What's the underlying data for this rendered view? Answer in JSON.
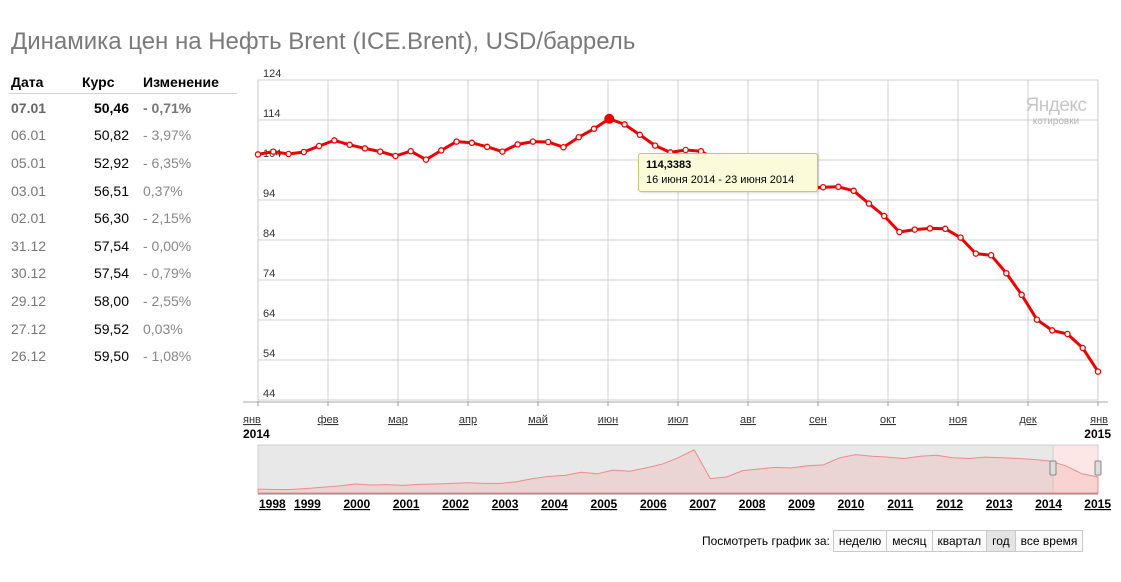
{
  "title": "Динамика цен на Нефть Brent (ICE.Brent), USD/баррель",
  "table": {
    "headers": {
      "date": "Дата",
      "rate": "Курс",
      "change": "Изменение"
    },
    "rows": [
      {
        "date": "07.01",
        "rate": "50,46",
        "change": "- 0,71%"
      },
      {
        "date": "06.01",
        "rate": "50,82",
        "change": "- 3,97%"
      },
      {
        "date": "05.01",
        "rate": "52,92",
        "change": "- 6,35%"
      },
      {
        "date": "03.01",
        "rate": "56,51",
        "change": "0,37%"
      },
      {
        "date": "02.01",
        "rate": "56,30",
        "change": "- 2,15%"
      },
      {
        "date": "31.12",
        "rate": "57,54",
        "change": "- 0,00%"
      },
      {
        "date": "30.12",
        "rate": "57,54",
        "change": "- 0,79%"
      },
      {
        "date": "29.12",
        "rate": "58,00",
        "change": "- 2,55%"
      },
      {
        "date": "27.12",
        "rate": "59,52",
        "change": "0,03%"
      },
      {
        "date": "26.12",
        "rate": "59,50",
        "change": "- 1,08%"
      }
    ]
  },
  "logo": {
    "line1": "Яндекс",
    "line2": "котировки"
  },
  "tooltip": {
    "value": "114,3383",
    "period": "16 июня 2014 - 23 июня 2014"
  },
  "period_selector": {
    "label": "Посмотреть график за:",
    "buttons": [
      "неделю",
      "месяц",
      "квартал",
      "год",
      "все время"
    ],
    "active": "год"
  },
  "colors": {
    "line": "#ee0000",
    "grid": "#d0d0d0",
    "navigator_fill": "#e8e8e8",
    "navigator_line": "#f08a8a"
  },
  "chart_data": {
    "type": "line",
    "ylim": [
      44,
      124
    ],
    "y_ticks": [
      "124",
      "114",
      "104",
      "94",
      "84",
      "74",
      "64",
      "54",
      "44"
    ],
    "x_month_labels": [
      "янв",
      "фев",
      "мар",
      "апр",
      "май",
      "июн",
      "июл",
      "авг",
      "сен",
      "окт",
      "ноя",
      "дек",
      "янв"
    ],
    "x_year_start": "2014",
    "x_year_end": "2015",
    "highlight_index": 23,
    "series": [
      {
        "values": [
          105.4,
          106.1,
          105.5,
          106.0,
          107.5,
          108.9,
          107.8,
          106.9,
          106.1,
          105.0,
          106.2,
          104.1,
          106.4,
          108.6,
          108.3,
          107.3,
          106.1,
          107.9,
          108.6,
          108.5,
          107.2,
          109.7,
          111.8,
          114.3,
          112.9,
          110.3,
          107.6,
          105.9,
          106.5,
          106.2,
          104.0,
          103.4,
          101.7,
          101.6,
          101.8,
          97.9,
          97.0,
          97.2,
          97.3,
          96.3,
          93.1,
          90.0,
          86.0,
          86.6,
          86.9,
          86.8,
          84.6,
          80.6,
          80.2,
          75.7,
          70.3,
          64.1,
          61.4,
          60.5,
          57.0,
          51.1
        ]
      }
    ],
    "navigator": {
      "years": [
        "1998",
        "1999",
        "2000",
        "2001",
        "2002",
        "2003",
        "2004",
        "2005",
        "2006",
        "2007",
        "2008",
        "2009",
        "2010",
        "2011",
        "2012",
        "2013",
        "2014",
        "2015"
      ],
      "values": [
        12,
        11,
        11,
        14,
        18,
        22,
        28,
        25,
        26,
        24,
        27,
        28,
        30,
        32,
        30,
        30,
        35,
        45,
        52,
        55,
        65,
        60,
        72,
        68,
        78,
        90,
        110,
        135,
        45,
        50,
        70,
        75,
        80,
        78,
        85,
        88,
        110,
        120,
        115,
        112,
        108,
        115,
        118,
        110,
        108,
        112,
        110,
        108,
        105,
        100,
        85,
        60,
        50
      ],
      "ylim": [
        0,
        150
      ]
    }
  }
}
